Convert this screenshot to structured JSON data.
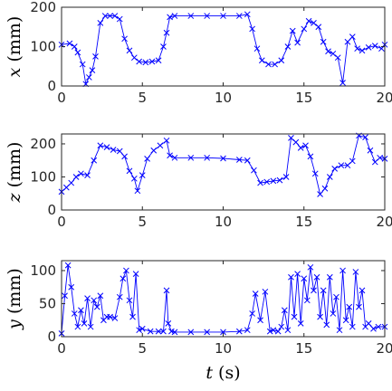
{
  "chart_data": [
    {
      "type": "line",
      "marker": "x",
      "color": "#0000ff",
      "ylabel_var": "x",
      "ylabel_unit": "(mm)",
      "xlim": [
        0,
        20
      ],
      "ylim": [
        0,
        200
      ],
      "xticks": [
        "0",
        "5",
        "10",
        "15",
        "20"
      ],
      "yticks": [
        "0",
        "100",
        "200"
      ],
      "x": [
        0,
        0.5,
        0.8,
        1.0,
        1.3,
        1.5,
        1.7,
        1.9,
        2.1,
        2.4,
        2.7,
        3.0,
        3.3,
        3.6,
        3.9,
        4.2,
        4.5,
        4.8,
        5.2,
        5.6,
        6.0,
        6.3,
        6.5,
        6.7,
        7.0,
        8.0,
        9.0,
        10.0,
        11.0,
        11.5,
        11.8,
        12.1,
        12.4,
        12.8,
        13.2,
        13.6,
        14.0,
        14.3,
        14.6,
        15.0,
        15.3,
        15.6,
        15.9,
        16.2,
        16.5,
        16.8,
        17.1,
        17.4,
        17.7,
        18.0,
        18.3,
        18.6,
        19.0,
        19.4,
        19.8,
        20.0
      ],
      "y": [
        105,
        108,
        100,
        85,
        55,
        5,
        22,
        40,
        75,
        160,
        178,
        178,
        178,
        170,
        120,
        90,
        72,
        62,
        60,
        62,
        65,
        100,
        135,
        175,
        178,
        178,
        178,
        178,
        178,
        182,
        145,
        95,
        65,
        55,
        55,
        65,
        100,
        140,
        110,
        145,
        165,
        160,
        150,
        112,
        88,
        82,
        72,
        8,
        112,
        125,
        95,
        90,
        98,
        102,
        95,
        105
      ]
    },
    {
      "type": "line",
      "marker": "x",
      "color": "#0000ff",
      "ylabel_var": "z",
      "ylabel_unit": "(mm)",
      "xlim": [
        0,
        20
      ],
      "ylim": [
        0,
        230
      ],
      "xticks": [
        "0",
        "5",
        "10",
        "15",
        "20"
      ],
      "yticks": [
        "0",
        "100",
        "200"
      ],
      "x": [
        0,
        0.3,
        0.6,
        0.9,
        1.2,
        1.6,
        2.0,
        2.4,
        2.8,
        3.2,
        3.6,
        3.9,
        4.2,
        4.5,
        4.7,
        5.0,
        5.3,
        5.7,
        6.1,
        6.5,
        6.7,
        7.0,
        8.0,
        9.0,
        10.0,
        11.0,
        11.5,
        11.9,
        12.3,
        12.7,
        13.1,
        13.5,
        13.9,
        14.2,
        14.5,
        14.8,
        15.1,
        15.4,
        15.7,
        16.0,
        16.3,
        16.6,
        16.9,
        17.3,
        17.7,
        18.0,
        18.4,
        18.8,
        19.1,
        19.4,
        19.7,
        20.0
      ],
      "y": [
        55,
        68,
        82,
        100,
        110,
        105,
        150,
        195,
        190,
        182,
        178,
        162,
        118,
        95,
        58,
        105,
        155,
        180,
        195,
        210,
        165,
        158,
        158,
        158,
        156,
        152,
        150,
        120,
        82,
        85,
        88,
        90,
        100,
        218,
        205,
        188,
        195,
        162,
        110,
        48,
        65,
        100,
        125,
        135,
        135,
        148,
        225,
        220,
        180,
        145,
        158,
        155
      ]
    },
    {
      "type": "line",
      "marker": "x",
      "color": "#0000ff",
      "ylabel_var": "y",
      "ylabel_unit": "(mm)",
      "xlabel_var": "t",
      "xlabel_unit": "(s)",
      "xlim": [
        0,
        20
      ],
      "ylim": [
        0,
        115
      ],
      "xticks": [
        "0",
        "5",
        "10",
        "15",
        "20"
      ],
      "yticks": [
        "0",
        "50",
        "100"
      ],
      "x": [
        0,
        0.2,
        0.4,
        0.6,
        0.8,
        1.0,
        1.2,
        1.4,
        1.6,
        1.8,
        2.0,
        2.2,
        2.4,
        2.6,
        2.8,
        3.0,
        3.3,
        3.6,
        3.8,
        4.0,
        4.2,
        4.4,
        4.6,
        4.8,
        5.0,
        5.5,
        6.0,
        6.3,
        6.5,
        6.6,
        6.8,
        7.0,
        8.0,
        9.0,
        10.0,
        11.0,
        11.5,
        11.8,
        12.0,
        12.3,
        12.6,
        12.9,
        13.1,
        13.4,
        13.6,
        13.8,
        14.0,
        14.2,
        14.4,
        14.6,
        14.8,
        15.0,
        15.2,
        15.4,
        15.6,
        15.8,
        16.0,
        16.2,
        16.4,
        16.6,
        16.8,
        17.0,
        17.2,
        17.4,
        17.6,
        17.8,
        18.0,
        18.2,
        18.4,
        18.6,
        18.8,
        19.0,
        19.3,
        19.6,
        20.0
      ],
      "y": [
        5,
        62,
        108,
        75,
        35,
        15,
        40,
        20,
        58,
        15,
        55,
        45,
        62,
        25,
        30,
        30,
        28,
        60,
        88,
        100,
        55,
        30,
        95,
        10,
        12,
        8,
        8,
        8,
        70,
        20,
        8,
        7,
        7,
        7,
        7,
        8,
        10,
        35,
        65,
        25,
        68,
        8,
        10,
        8,
        15,
        40,
        10,
        90,
        30,
        95,
        20,
        88,
        55,
        105,
        70,
        90,
        30,
        70,
        18,
        90,
        35,
        60,
        10,
        100,
        25,
        45,
        15,
        98,
        45,
        70,
        15,
        20,
        12,
        15,
        15
      ]
    }
  ]
}
